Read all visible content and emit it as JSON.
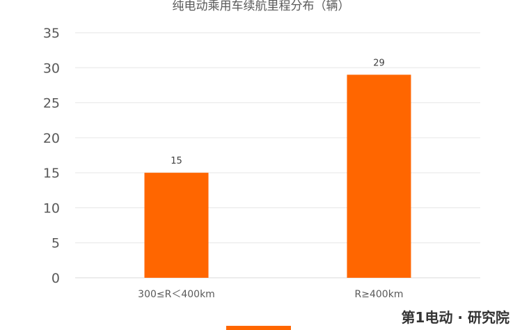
{
  "chart_data": {
    "type": "bar",
    "title": "纯电动乘用车续航里程分布（辆）",
    "categories": [
      "300≤R＜400km",
      "R≥400km"
    ],
    "values": [
      15,
      29
    ],
    "ylim": [
      0,
      35
    ],
    "yticks": [
      0,
      5,
      10,
      15,
      20,
      25,
      30,
      35
    ],
    "grid": true,
    "legend": "bottom",
    "bar_color": "#FF6600"
  },
  "brand": "第1电动 · 研究院"
}
